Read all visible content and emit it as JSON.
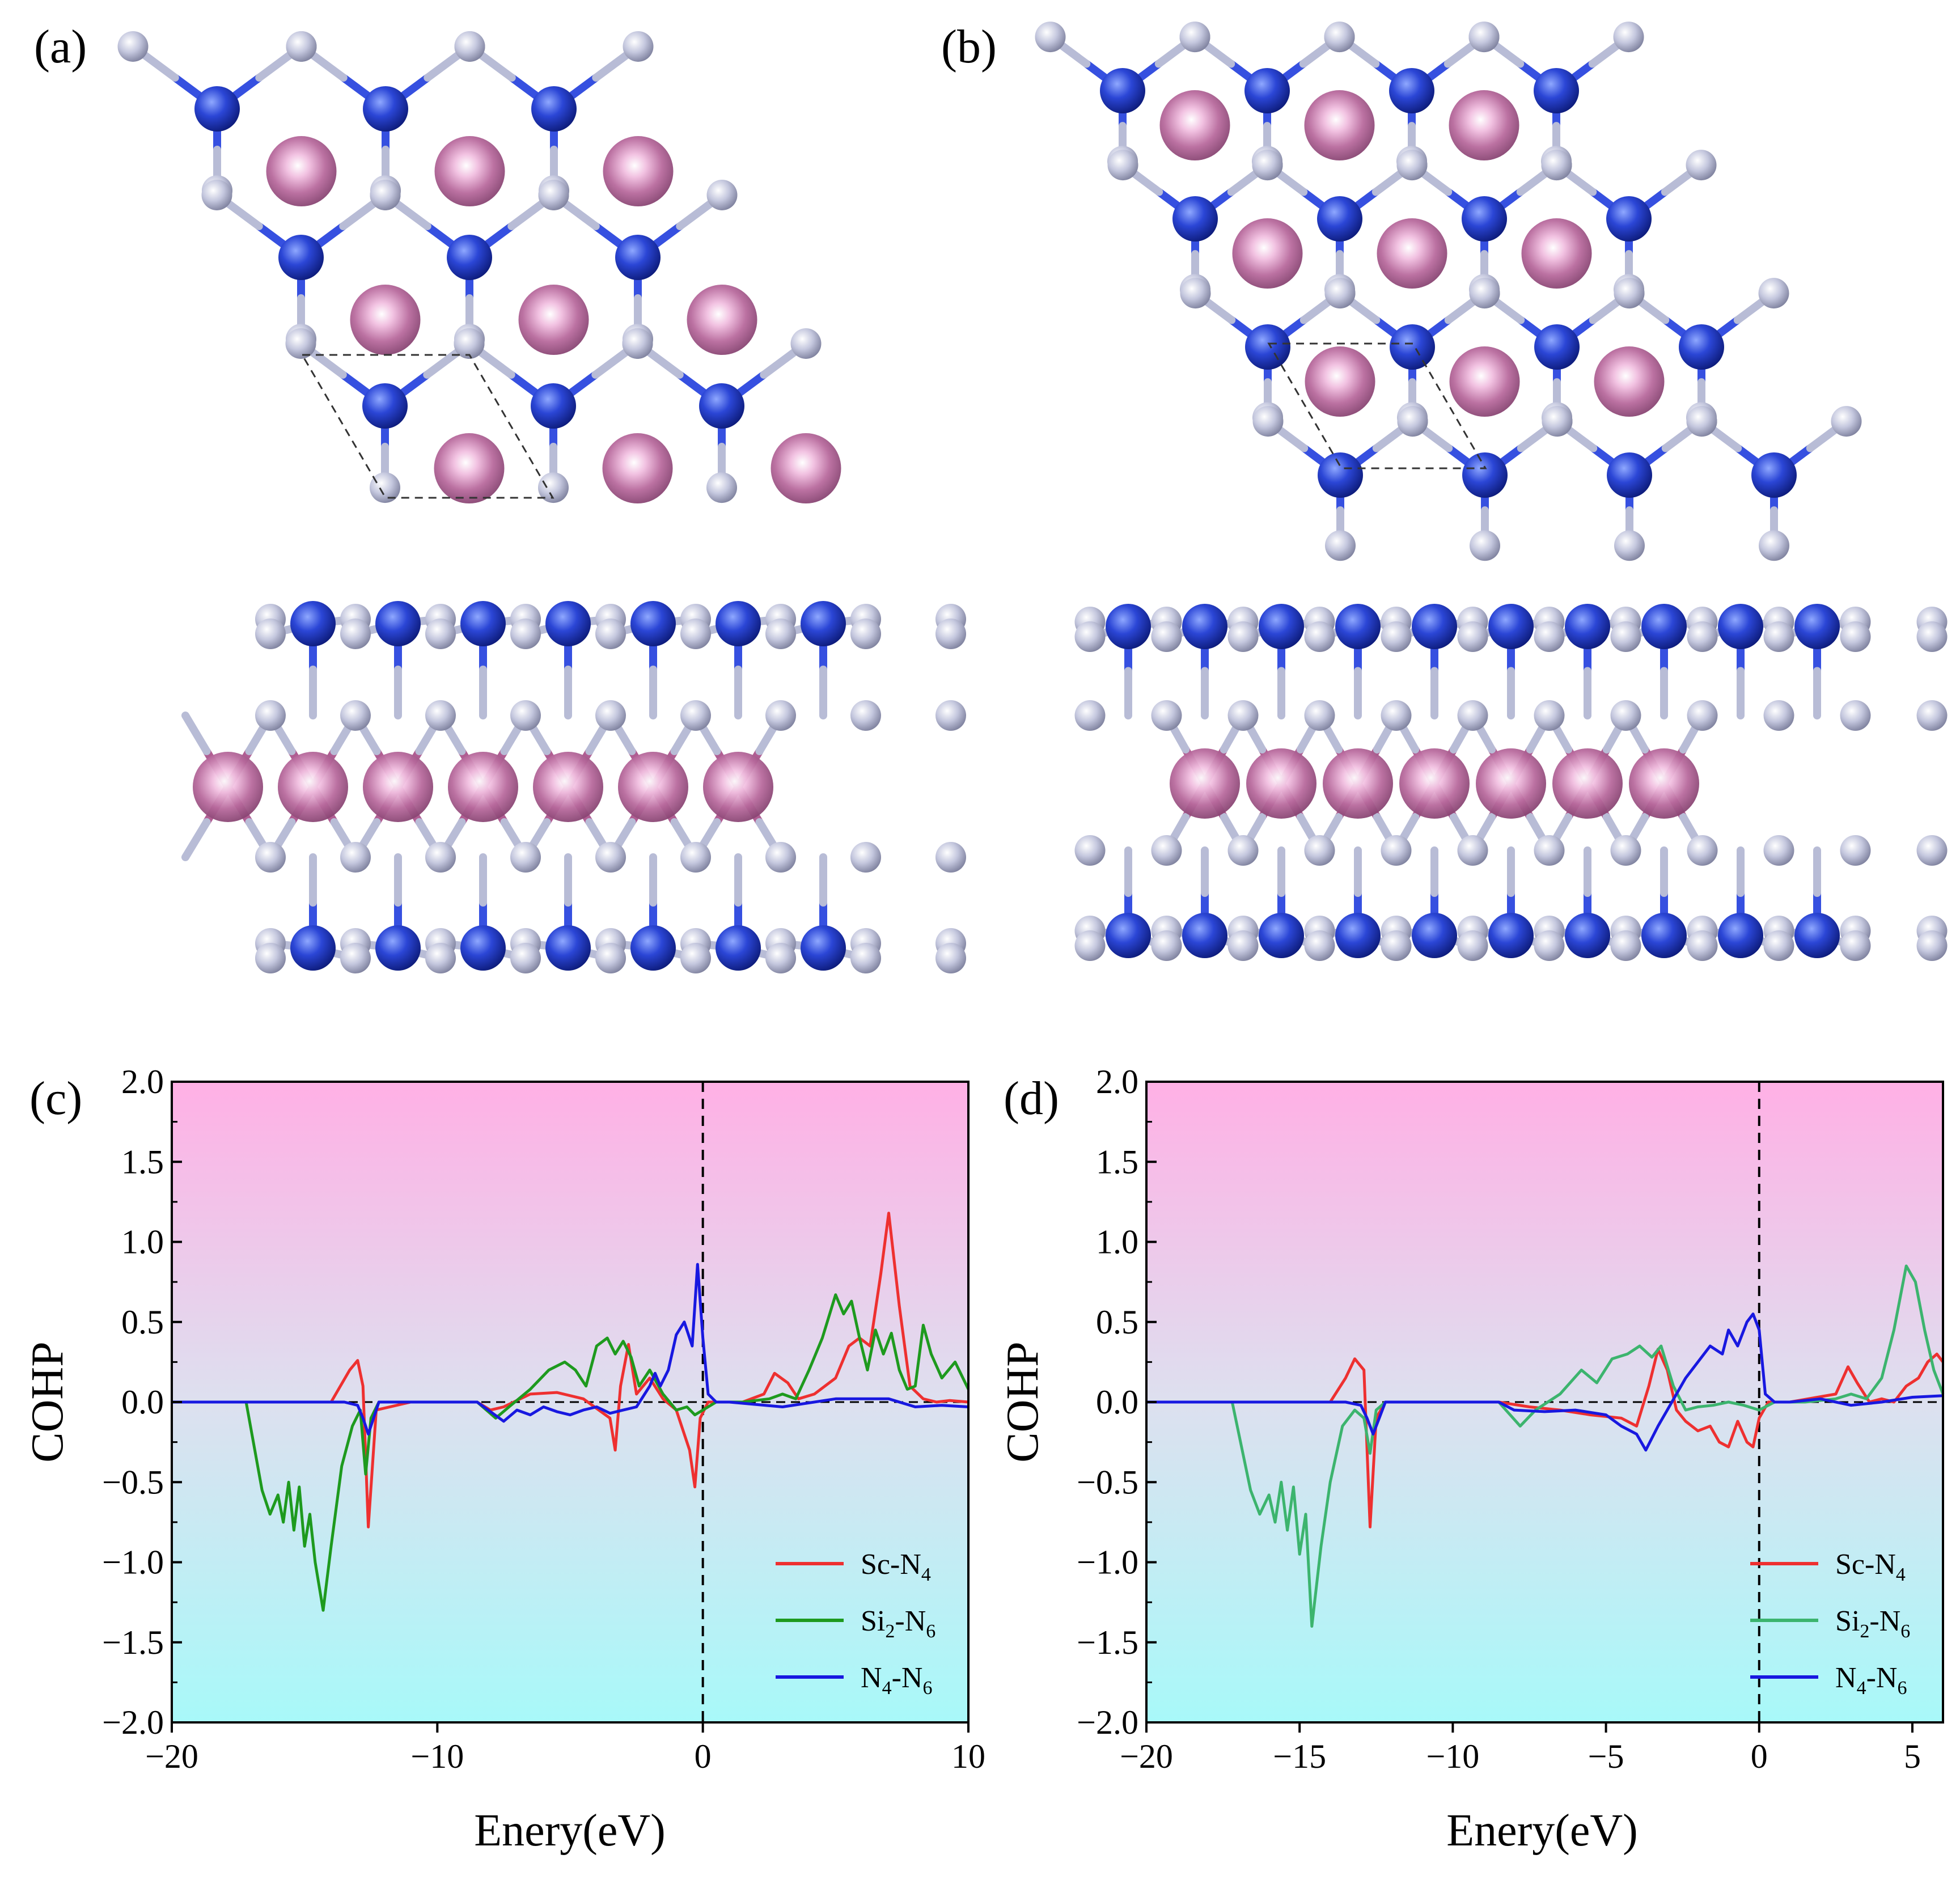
{
  "panel_labels": {
    "a": "(a)",
    "b": "(b)",
    "c": "(c)",
    "d": "(d)"
  },
  "colors": {
    "N_atom": "#2b46d6",
    "Si_atom": "#c4c7de",
    "Sc_atom": "#c77aa9",
    "positive_region_top": "#ffb0e5",
    "zero_region": "#dde0ef",
    "negative_region_bottom": "#a8f9f9",
    "sc_n4_line": "#ee3030",
    "si2_n6_line_c": "#1e9a1e",
    "si2_n6_line_d": "#3cb46e",
    "n4_n6_line": "#1818e0"
  },
  "chart_data": [
    {
      "type": "line",
      "panel": "c",
      "xlabel": "Enery(eV)",
      "ylabel": "COHP",
      "xlim": [
        -20,
        10
      ],
      "ylim": [
        -2.0,
        2.0
      ],
      "xticks": [
        -20,
        -10,
        0,
        10
      ],
      "xtick_labels": [
        "−20",
        "−10",
        "0",
        "10"
      ],
      "yticks": [
        2.0,
        1.5,
        1.0,
        0.5,
        0.0,
        -0.5,
        -1.0,
        -1.5,
        -2.0
      ],
      "ytick_labels": [
        "2.0",
        "1.5",
        "1.0",
        "0.5",
        "0.0",
        "−0.5",
        "−1.0",
        "−1.5",
        "−2.0"
      ],
      "fermi_level": 0,
      "legend": {
        "position": "bottom-right",
        "entries": [
          {
            "base": "Sc-N",
            "sub": "4",
            "base2": "",
            "sub2": ""
          },
          {
            "base": "Si",
            "sub": "2",
            "base2": "-N",
            "sub2": "6"
          },
          {
            "base": "N",
            "sub": "4",
            "base2": "-N",
            "sub2": "6"
          }
        ]
      },
      "series": [
        {
          "name": "Sc-N4",
          "color": "#ee3030",
          "x": [
            -20,
            -17,
            -14,
            -13.3,
            -13.0,
            -12.8,
            -12.6,
            -12.3,
            -11,
            -8.5,
            -8,
            -7.5,
            -6.5,
            -5.5,
            -4.5,
            -3.5,
            -3.3,
            -3.1,
            -2.8,
            -2.5,
            -2.0,
            -1.5,
            -1.0,
            -0.8,
            -0.5,
            -0.3,
            -0.1,
            0.2,
            0.5,
            1.5,
            2.3,
            2.7,
            3.2,
            3.6,
            4.2,
            5.0,
            5.5,
            5.9,
            6.3,
            6.7,
            7.0,
            7.4,
            7.8,
            8.3,
            8.8,
            9.3,
            10
          ],
          "y": [
            0,
            0,
            0,
            0.2,
            0.26,
            0.1,
            -0.78,
            -0.05,
            0,
            0,
            -0.05,
            -0.03,
            0.05,
            0.06,
            0.02,
            -0.1,
            -0.3,
            0.1,
            0.36,
            0.05,
            0.15,
            0.02,
            -0.05,
            -0.15,
            -0.3,
            -0.53,
            -0.1,
            0,
            0,
            0,
            0.05,
            0.18,
            0.12,
            0.02,
            0.05,
            0.15,
            0.35,
            0.4,
            0.35,
            0.8,
            1.18,
            0.6,
            0.1,
            0.02,
            0,
            0.01,
            0
          ]
        },
        {
          "name": "Si2-N6",
          "color": "#1e9a1e",
          "x": [
            -20,
            -17.2,
            -16.6,
            -16.3,
            -16.0,
            -15.8,
            -15.6,
            -15.4,
            -15.2,
            -15.0,
            -14.8,
            -14.6,
            -14.3,
            -14.0,
            -13.6,
            -13.2,
            -12.9,
            -12.7,
            -12.5,
            -12.2,
            -11,
            -8.5,
            -7.8,
            -7.3,
            -6.5,
            -5.8,
            -5.2,
            -4.8,
            -4.4,
            -4.0,
            -3.6,
            -3.3,
            -3.0,
            -2.7,
            -2.4,
            -2.0,
            -1.5,
            -1.0,
            -0.6,
            -0.3,
            0,
            0.5,
            1.5,
            2.5,
            3.0,
            3.5,
            4.0,
            4.5,
            5.0,
            5.3,
            5.6,
            5.9,
            6.2,
            6.5,
            6.8,
            7.1,
            7.4,
            7.7,
            8.0,
            8.3,
            8.6,
            9.0,
            9.5,
            10
          ],
          "y": [
            0,
            0,
            -0.55,
            -0.7,
            -0.58,
            -0.75,
            -0.5,
            -0.8,
            -0.53,
            -0.9,
            -0.7,
            -1.0,
            -1.3,
            -0.9,
            -0.4,
            -0.15,
            -0.05,
            -0.45,
            -0.1,
            0,
            0,
            0,
            -0.1,
            -0.03,
            0.08,
            0.2,
            0.25,
            0.2,
            0.1,
            0.35,
            0.4,
            0.3,
            0.38,
            0.28,
            0.1,
            0.2,
            0.05,
            -0.05,
            -0.03,
            -0.08,
            -0.05,
            0,
            0,
            0.02,
            0.05,
            0.02,
            0.2,
            0.4,
            0.67,
            0.55,
            0.63,
            0.4,
            0.2,
            0.45,
            0.3,
            0.43,
            0.2,
            0.08,
            0.1,
            0.48,
            0.3,
            0.15,
            0.25,
            0.08
          ]
        },
        {
          "name": "N4-N6",
          "color": "#1818e0",
          "x": [
            -20,
            -13.5,
            -13.0,
            -12.8,
            -12.6,
            -12.4,
            -12.2,
            -11,
            -8.5,
            -8.0,
            -7.5,
            -7.0,
            -6.5,
            -6.0,
            -5.5,
            -5.0,
            -4.5,
            -4.0,
            -3.5,
            -3.0,
            -2.5,
            -2.0,
            -1.8,
            -1.6,
            -1.3,
            -1.0,
            -0.7,
            -0.4,
            -0.2,
            0,
            0.2,
            0.5,
            1,
            3,
            5,
            7,
            8,
            9,
            10
          ],
          "y": [
            0,
            0,
            -0.02,
            -0.1,
            -0.2,
            -0.1,
            0,
            0,
            0,
            -0.06,
            -0.12,
            -0.05,
            -0.08,
            -0.03,
            -0.06,
            -0.08,
            -0.05,
            -0.03,
            -0.07,
            -0.05,
            -0.03,
            0.1,
            0.18,
            0.1,
            0.2,
            0.42,
            0.5,
            0.35,
            0.86,
            0.4,
            0.05,
            0,
            0,
            -0.03,
            0.02,
            0.02,
            -0.03,
            -0.02,
            -0.03
          ]
        }
      ]
    },
    {
      "type": "line",
      "panel": "d",
      "xlabel": "Enery(eV)",
      "ylabel": "COHP",
      "xlim": [
        -20,
        6
      ],
      "ylim": [
        -2.0,
        2.0
      ],
      "xticks": [
        -20,
        -15,
        -10,
        -5,
        0,
        5
      ],
      "xtick_labels": [
        "−20",
        "−15",
        "−10",
        "−5",
        "0",
        "5"
      ],
      "yticks": [
        2.0,
        1.5,
        1.0,
        0.5,
        0.0,
        -0.5,
        -1.0,
        -1.5,
        -2.0
      ],
      "ytick_labels": [
        "2.0",
        "1.5",
        "1.0",
        "0.5",
        "0.0",
        "−0.5",
        "−1.0",
        "−1.5",
        "−2.0"
      ],
      "fermi_level": 0,
      "legend": {
        "position": "bottom-right",
        "entries": [
          {
            "base": "Sc-N",
            "sub": "4",
            "base2": "",
            "sub2": ""
          },
          {
            "base": "Si",
            "sub": "2",
            "base2": "-N",
            "sub2": "6"
          },
          {
            "base": "N",
            "sub": "4",
            "base2": "-N",
            "sub2": "6"
          }
        ]
      },
      "series": [
        {
          "name": "Sc-N4",
          "color": "#ee3030",
          "x": [
            -20,
            -14,
            -13.5,
            -13.2,
            -12.9,
            -12.7,
            -12.5,
            -12.2,
            -11,
            -8.5,
            -7.5,
            -6.5,
            -5.5,
            -4.5,
            -4.0,
            -3.6,
            -3.3,
            -3.0,
            -2.7,
            -2.4,
            -2.0,
            -1.6,
            -1.3,
            -1.0,
            -0.7,
            -0.4,
            -0.2,
            0,
            0.3,
            1,
            2.5,
            2.9,
            3.2,
            3.6,
            4.0,
            4.4,
            4.8,
            5.2,
            5.5,
            5.8,
            6
          ],
          "y": [
            0,
            0,
            0.15,
            0.27,
            0.2,
            -0.78,
            -0.1,
            0,
            0,
            0,
            -0.03,
            -0.05,
            -0.08,
            -0.1,
            -0.15,
            0.1,
            0.33,
            0.2,
            -0.05,
            -0.12,
            -0.18,
            -0.15,
            -0.25,
            -0.28,
            -0.12,
            -0.25,
            -0.28,
            -0.1,
            0,
            0,
            0.05,
            0.22,
            0.12,
            0,
            0.02,
            0.0,
            0.1,
            0.15,
            0.25,
            0.3,
            0.25
          ]
        },
        {
          "name": "Si2-N6",
          "color": "#3cb46e",
          "x": [
            -20,
            -17.2,
            -16.6,
            -16.3,
            -16.0,
            -15.8,
            -15.6,
            -15.4,
            -15.2,
            -15.0,
            -14.8,
            -14.6,
            -14.3,
            -14.0,
            -13.6,
            -13.2,
            -12.9,
            -12.7,
            -12.5,
            -12.2,
            -11,
            -8.5,
            -7.8,
            -7.3,
            -6.5,
            -5.8,
            -5.3,
            -4.8,
            -4.3,
            -3.9,
            -3.5,
            -3.2,
            -2.8,
            -2.4,
            -2.0,
            -1.5,
            -1.0,
            -0.5,
            0,
            0.5,
            1.5,
            2.5,
            3.0,
            3.5,
            4.0,
            4.4,
            4.8,
            5.1,
            5.4,
            5.7,
            6
          ],
          "y": [
            0,
            0,
            -0.55,
            -0.7,
            -0.58,
            -0.75,
            -0.5,
            -0.8,
            -0.53,
            -0.95,
            -0.7,
            -1.4,
            -0.9,
            -0.5,
            -0.15,
            -0.05,
            -0.1,
            -0.32,
            -0.05,
            0,
            0,
            0,
            -0.15,
            -0.05,
            0.05,
            0.2,
            0.12,
            0.27,
            0.3,
            0.35,
            0.28,
            0.35,
            0.1,
            -0.05,
            -0.03,
            -0.02,
            0.0,
            -0.02,
            -0.05,
            0,
            0,
            0.02,
            0.05,
            0.02,
            0.15,
            0.45,
            0.85,
            0.75,
            0.45,
            0.2,
            0.05
          ]
        },
        {
          "name": "N4-N6",
          "color": "#1818e0",
          "x": [
            -20,
            -13.5,
            -13.0,
            -12.8,
            -12.6,
            -12.4,
            -12.2,
            -11,
            -8.5,
            -8.0,
            -7.0,
            -6.0,
            -5.0,
            -4.5,
            -4.0,
            -3.7,
            -3.3,
            -3.0,
            -2.7,
            -2.4,
            -2.0,
            -1.6,
            -1.2,
            -1.0,
            -0.7,
            -0.4,
            -0.2,
            0,
            0.2,
            0.5,
            1,
            2,
            3,
            4,
            5,
            6
          ],
          "y": [
            0,
            0,
            -0.02,
            -0.1,
            -0.2,
            -0.1,
            0,
            0,
            0,
            -0.05,
            -0.06,
            -0.05,
            -0.08,
            -0.15,
            -0.2,
            -0.3,
            -0.15,
            -0.05,
            0.05,
            0.15,
            0.25,
            0.35,
            0.3,
            0.45,
            0.35,
            0.5,
            0.55,
            0.45,
            0.05,
            0,
            0,
            0.02,
            -0.02,
            0.0,
            0.03,
            0.04
          ]
        }
      ]
    }
  ]
}
